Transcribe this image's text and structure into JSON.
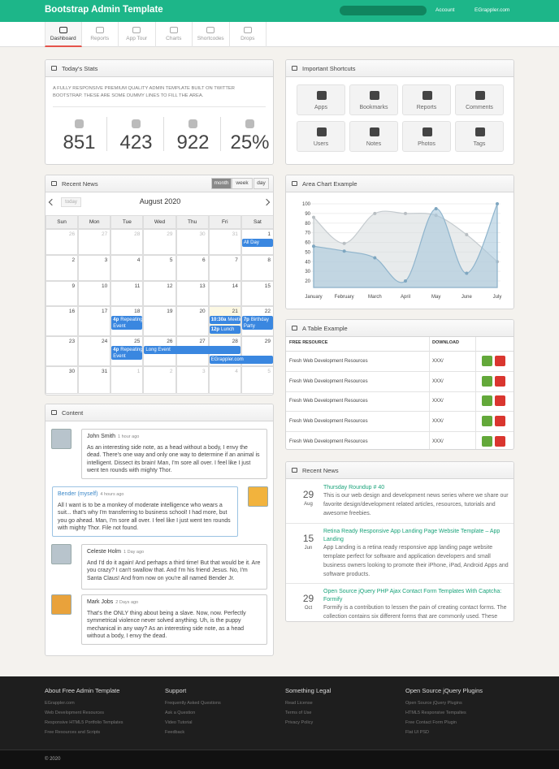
{
  "navbar": {
    "brand": "Bootstrap Admin Template",
    "account": "Account",
    "user": "EGrappler.com"
  },
  "tabs": [
    "Dashboard",
    "Reports",
    "App Tour",
    "Charts",
    "Shortcodes",
    "Drops"
  ],
  "stats": {
    "title": "Today's Stats",
    "description": "A FULLY RESPONSIVE PREMIUM QUALITY ADMIN TEMPLATE BUILT ON TWITTER BOOTSTRAP. THESE ARE SOME DUMMY LINES TO FILL THE AREA.",
    "values": [
      "851",
      "423",
      "922",
      "25%"
    ]
  },
  "shortcuts": {
    "title": "Important Shortcuts",
    "items": [
      "Apps",
      "Bookmarks",
      "Reports",
      "Comments",
      "Users",
      "Notes",
      "Photos",
      "Tags"
    ]
  },
  "calendar": {
    "title": "Recent News",
    "today": "today",
    "month": "August 2020",
    "views": [
      "month",
      "week",
      "day"
    ],
    "weekdays": [
      "Sun",
      "Mon",
      "Tue",
      "Wed",
      "Thu",
      "Fri",
      "Sat"
    ],
    "weeks": [
      [
        26,
        27,
        28,
        29,
        30,
        31,
        1
      ],
      [
        2,
        3,
        4,
        5,
        6,
        7,
        8
      ],
      [
        9,
        10,
        11,
        12,
        13,
        14,
        15
      ],
      [
        16,
        17,
        18,
        19,
        20,
        21,
        22
      ],
      [
        23,
        24,
        25,
        26,
        27,
        28,
        29
      ],
      [
        30,
        31,
        1,
        2,
        3,
        4,
        5
      ]
    ],
    "events": [
      {
        "title": "All Day Event"
      },
      {
        "time": "4p",
        "title": "Repeating Event"
      },
      {
        "time": "10:30a",
        "title": "Meeting"
      },
      {
        "time": "12p",
        "title": "Lunch"
      },
      {
        "time": "7p",
        "title": "Birthday Party"
      },
      {
        "time": "4p",
        "title": "Repeating Event"
      },
      {
        "title": "Long Event"
      },
      {
        "title": "EGrappler.com"
      }
    ]
  },
  "content": {
    "title": "Content",
    "messages": [
      {
        "name": "John Smith",
        "time": "1 hour ago",
        "text": "As an interesting side note, as a head without a body, I envy the dead. There's one way and only one way to determine if an animal is intelligent. Dissect its brain! Man, I'm sore all over. I feel like I just went ten rounds with mighty Thor."
      },
      {
        "name": "Bender (myself)",
        "time": "4 hours ago",
        "text": "All I want is to be a monkey of moderate intelligence who wears a suit... that's why I'm transferring to business school! I had more, but you go ahead. Man, I'm sore all over. I feel like I just went ten rounds with mighty Thor. File not found."
      },
      {
        "name": "Celeste Holm",
        "time": "1 Day ago",
        "text": "And I'd do it again! And perhaps a third time! But that would be it. Are you crazy? I can't swallow that. And I'm his friend Jesus. No, I'm Santa Claus! And from now on you're all named Bender Jr."
      },
      {
        "name": "Mark Jobs",
        "time": "2 Days ago",
        "text": "That's the ONLY thing about being a slave. Now, now. Perfectly symmetrical violence never solved anything. Uh, is the puppy mechanical in any way? As an interesting side note, as a head without a body, I envy the dead."
      }
    ]
  },
  "area_chart": {
    "title": "Area Chart Example",
    "categories": [
      "January",
      "February",
      "March",
      "April",
      "May",
      "June",
      "July"
    ],
    "series": [
      {
        "color": "#d8dde0",
        "values": [
          86,
          59,
          90,
          90,
          88,
          68,
          40
        ]
      },
      {
        "color": "#a9c8dc",
        "values": [
          56,
          51,
          44,
          20,
          95,
          28,
          100
        ]
      }
    ],
    "ylim": [
      20,
      100
    ],
    "yticks": [
      20,
      30,
      40,
      50,
      60,
      70,
      80,
      90,
      100
    ]
  },
  "table": {
    "title": "A Table Example",
    "headers": [
      "FREE RESOURCE",
      "DOWNLOAD"
    ],
    "rows": [
      [
        "Fresh Web Development Resources",
        "XXX/"
      ],
      [
        "Fresh Web Development Resources",
        "XXX/"
      ],
      [
        "Fresh Web Development Resources",
        "XXX/"
      ],
      [
        "Fresh Web Development Resources",
        "XXX/"
      ],
      [
        "Fresh Web Development Resources",
        "XXX/"
      ]
    ]
  },
  "news": {
    "title": "Recent News",
    "items": [
      {
        "day": "29",
        "month": "Aug",
        "title": "Thursday Roundup # 40",
        "text": "This is our web design and development news series where we share our favorite design/development related articles, resources, tutorials and awesome freebies."
      },
      {
        "day": "15",
        "month": "Jun",
        "title": "Retina Ready Responsive App Landing Page Website Template – App Landing",
        "text": "App Landing is a retina ready responsive app landing page website template perfect for software and application developers and small business owners looking to promote their iPhone, iPad, Android Apps and software products."
      },
      {
        "day": "29",
        "month": "Oct",
        "title": "Open Source jQuery PHP Ajax Contact Form Templates With Captcha: Formify",
        "text": "Formify is a contribution to lessen the pain of creating contact forms. The collection contains six different forms that are commonly used. These open source contact forms can be customized as well to suit the need for your website/application."
      }
    ]
  },
  "footer": {
    "columns": [
      {
        "heading": "About Free Admin Template",
        "links": [
          "EGrappler.com",
          "Web Development Resources",
          "Responsive HTML5 Portfolio Templates",
          "Free Resources and Scripts"
        ]
      },
      {
        "heading": "Support",
        "links": [
          "Frequently Asked Questions",
          "Ask a Question",
          "Video Tutorial",
          "Feedback"
        ]
      },
      {
        "heading": "Something Legal",
        "links": [
          "Read License",
          "Terms of Use",
          "Privacy Policy"
        ]
      },
      {
        "heading": "Open Source jQuery Plugins",
        "links": [
          "Open Source jQuery Plugins",
          "HTML5 Responsive Tempaltes",
          "Free Contact Form Plugin",
          "Flat UI PSD"
        ]
      }
    ],
    "copyright": "© 2020"
  }
}
